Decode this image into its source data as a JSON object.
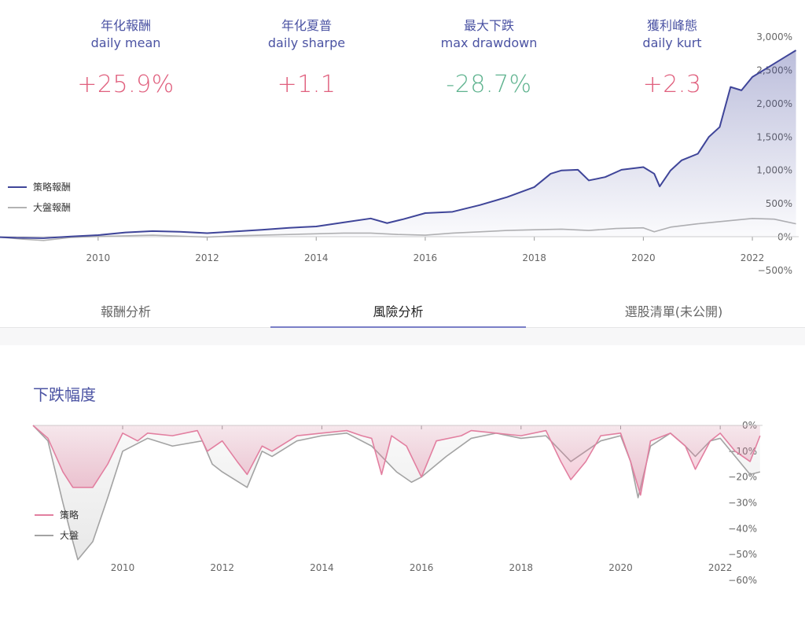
{
  "stats": [
    {
      "zh": "年化報酬",
      "en": "daily mean",
      "value": "+25.9%",
      "color": "#e0607e"
    },
    {
      "zh": "年化夏普",
      "en": "daily sharpe",
      "value": "+1.1",
      "color": "#e0607e"
    },
    {
      "zh": "最大下跌",
      "en": "max drawdown",
      "value": "-28.7%",
      "color": "#5fb38f"
    },
    {
      "zh": "獲利峰態",
      "en": "daily kurt",
      "value": "+2.3",
      "color": "#e0607e"
    }
  ],
  "tabs": {
    "returns": "報酬分析",
    "risk": "風險分析",
    "picks": "選股清單(未公開)"
  },
  "section_title": "下跌幅度",
  "colors": {
    "strategy": "#3f4599",
    "benchmark": "#b3b3b3",
    "dd_strategy": "#e27fa0",
    "dd_benchmark": "#a3a3a3",
    "accent": "#4b53a3"
  },
  "chart_data": [
    {
      "type": "line",
      "x_ticks": [
        "2010",
        "2012",
        "2014",
        "2016",
        "2018",
        "2020",
        "2022"
      ],
      "y_ticks": [
        "3,000%",
        "2,500%",
        "2,000%",
        "1,500%",
        "1,000%",
        "500%",
        "0%",
        "−500%"
      ],
      "ylim": [
        -500,
        3000
      ],
      "series": [
        {
          "name": "策略報酬",
          "color": "#3f4599",
          "points": [
            [
              2008.2,
              0
            ],
            [
              2008.5,
              -10
            ],
            [
              2009.0,
              -15
            ],
            [
              2009.5,
              10
            ],
            [
              2010.0,
              30
            ],
            [
              2010.5,
              70
            ],
            [
              2011.0,
              90
            ],
            [
              2011.5,
              80
            ],
            [
              2012.0,
              60
            ],
            [
              2012.5,
              85
            ],
            [
              2013.0,
              110
            ],
            [
              2013.5,
              140
            ],
            [
              2014.0,
              160
            ],
            [
              2014.5,
              220
            ],
            [
              2015.0,
              280
            ],
            [
              2015.3,
              210
            ],
            [
              2015.6,
              270
            ],
            [
              2016.0,
              360
            ],
            [
              2016.5,
              380
            ],
            [
              2017.0,
              480
            ],
            [
              2017.5,
              600
            ],
            [
              2018.0,
              750
            ],
            [
              2018.3,
              950
            ],
            [
              2018.5,
              1000
            ],
            [
              2018.8,
              1010
            ],
            [
              2019.0,
              850
            ],
            [
              2019.3,
              900
            ],
            [
              2019.6,
              1010
            ],
            [
              2020.0,
              1050
            ],
            [
              2020.2,
              950
            ],
            [
              2020.3,
              760
            ],
            [
              2020.5,
              1000
            ],
            [
              2020.7,
              1150
            ],
            [
              2021.0,
              1250
            ],
            [
              2021.2,
              1500
            ],
            [
              2021.4,
              1650
            ],
            [
              2021.6,
              2250
            ],
            [
              2021.8,
              2200
            ],
            [
              2022.0,
              2400
            ],
            [
              2022.3,
              2550
            ],
            [
              2022.6,
              2700
            ],
            [
              2022.8,
              2800
            ]
          ]
        },
        {
          "name": "大盤報酬",
          "color": "#b3b3b3",
          "points": [
            [
              2008.2,
              0
            ],
            [
              2008.6,
              -30
            ],
            [
              2009.0,
              -50
            ],
            [
              2009.5,
              -5
            ],
            [
              2010.0,
              10
            ],
            [
              2010.5,
              20
            ],
            [
              2011.0,
              30
            ],
            [
              2011.5,
              15
            ],
            [
              2012.0,
              0
            ],
            [
              2012.5,
              20
            ],
            [
              2013.0,
              30
            ],
            [
              2013.5,
              40
            ],
            [
              2014.0,
              50
            ],
            [
              2014.5,
              60
            ],
            [
              2015.0,
              60
            ],
            [
              2015.5,
              40
            ],
            [
              2016.0,
              30
            ],
            [
              2016.5,
              60
            ],
            [
              2017.0,
              80
            ],
            [
              2017.5,
              100
            ],
            [
              2018.0,
              110
            ],
            [
              2018.5,
              120
            ],
            [
              2019.0,
              100
            ],
            [
              2019.5,
              130
            ],
            [
              2020.0,
              140
            ],
            [
              2020.2,
              80
            ],
            [
              2020.5,
              150
            ],
            [
              2021.0,
              200
            ],
            [
              2021.5,
              240
            ],
            [
              2022.0,
              280
            ],
            [
              2022.4,
              270
            ],
            [
              2022.8,
              200
            ]
          ]
        }
      ]
    },
    {
      "type": "area",
      "x_ticks": [
        "2010",
        "2012",
        "2014",
        "2016",
        "2018",
        "2020",
        "2022"
      ],
      "y_ticks": [
        "0%",
        "−10%",
        "−20%",
        "−30%",
        "−40%",
        "−50%",
        "−60%"
      ],
      "ylim": [
        -60,
        0
      ],
      "series": [
        {
          "name": "策略",
          "color": "#e27fa0",
          "points": [
            [
              2008.2,
              0
            ],
            [
              2008.5,
              -5
            ],
            [
              2008.8,
              -18
            ],
            [
              2009.0,
              -24
            ],
            [
              2009.4,
              -24
            ],
            [
              2009.7,
              -15
            ],
            [
              2010.0,
              -3
            ],
            [
              2010.3,
              -6
            ],
            [
              2010.5,
              -3
            ],
            [
              2011.0,
              -4
            ],
            [
              2011.5,
              -2
            ],
            [
              2011.7,
              -10
            ],
            [
              2012.0,
              -6
            ],
            [
              2012.3,
              -14
            ],
            [
              2012.5,
              -19
            ],
            [
              2012.8,
              -8
            ],
            [
              2013.0,
              -10
            ],
            [
              2013.5,
              -4
            ],
            [
              2014.0,
              -3
            ],
            [
              2014.5,
              -2
            ],
            [
              2014.8,
              -4
            ],
            [
              2015.0,
              -5
            ],
            [
              2015.2,
              -19
            ],
            [
              2015.4,
              -4
            ],
            [
              2015.7,
              -8
            ],
            [
              2016.0,
              -20
            ],
            [
              2016.3,
              -6
            ],
            [
              2016.8,
              -4
            ],
            [
              2017.0,
              -2
            ],
            [
              2017.5,
              -3
            ],
            [
              2018.0,
              -4
            ],
            [
              2018.5,
              -2
            ],
            [
              2018.8,
              -14
            ],
            [
              2019.0,
              -21
            ],
            [
              2019.3,
              -14
            ],
            [
              2019.6,
              -4
            ],
            [
              2020.0,
              -3
            ],
            [
              2020.2,
              -14
            ],
            [
              2020.4,
              -27
            ],
            [
              2020.6,
              -6
            ],
            [
              2021.0,
              -3
            ],
            [
              2021.3,
              -8
            ],
            [
              2021.5,
              -17
            ],
            [
              2021.8,
              -6
            ],
            [
              2022.0,
              -3
            ],
            [
              2022.3,
              -10
            ],
            [
              2022.6,
              -14
            ],
            [
              2022.8,
              -4
            ]
          ]
        },
        {
          "name": "大盤",
          "color": "#a3a3a3",
          "points": [
            [
              2008.2,
              0
            ],
            [
              2008.5,
              -6
            ],
            [
              2008.8,
              -30
            ],
            [
              2009.0,
              -45
            ],
            [
              2009.1,
              -52
            ],
            [
              2009.4,
              -45
            ],
            [
              2009.7,
              -28
            ],
            [
              2010.0,
              -10
            ],
            [
              2010.5,
              -5
            ],
            [
              2011.0,
              -8
            ],
            [
              2011.6,
              -6
            ],
            [
              2011.8,
              -15
            ],
            [
              2012.0,
              -18
            ],
            [
              2012.5,
              -24
            ],
            [
              2012.8,
              -10
            ],
            [
              2013.0,
              -12
            ],
            [
              2013.5,
              -6
            ],
            [
              2014.0,
              -4
            ],
            [
              2014.5,
              -3
            ],
            [
              2015.0,
              -8
            ],
            [
              2015.2,
              -12
            ],
            [
              2015.5,
              -18
            ],
            [
              2015.8,
              -22
            ],
            [
              2016.0,
              -20
            ],
            [
              2016.5,
              -12
            ],
            [
              2017.0,
              -5
            ],
            [
              2017.5,
              -3
            ],
            [
              2018.0,
              -5
            ],
            [
              2018.5,
              -4
            ],
            [
              2018.8,
              -10
            ],
            [
              2019.0,
              -14
            ],
            [
              2019.3,
              -10
            ],
            [
              2019.6,
              -6
            ],
            [
              2020.0,
              -4
            ],
            [
              2020.2,
              -14
            ],
            [
              2020.35,
              -28
            ],
            [
              2020.6,
              -8
            ],
            [
              2021.0,
              -3
            ],
            [
              2021.3,
              -8
            ],
            [
              2021.5,
              -12
            ],
            [
              2021.8,
              -6
            ],
            [
              2022.0,
              -5
            ],
            [
              2022.3,
              -12
            ],
            [
              2022.6,
              -19
            ],
            [
              2022.8,
              -18
            ]
          ]
        }
      ]
    }
  ]
}
